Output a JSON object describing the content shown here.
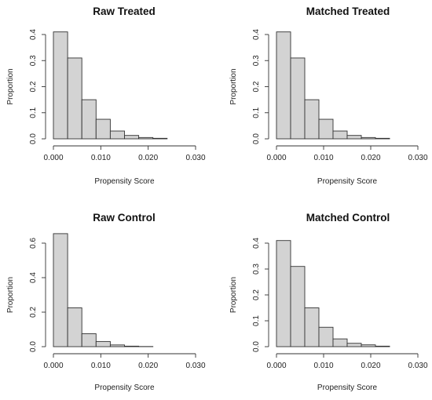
{
  "chart_data": [
    {
      "type": "bar",
      "title": "Raw Treated",
      "xlabel": "Propensity Score",
      "ylabel": "Proportion",
      "bin_edges": [
        0.0,
        0.003,
        0.006,
        0.009,
        0.012,
        0.015,
        0.018,
        0.021,
        0.024
      ],
      "values": [
        0.41,
        0.31,
        0.15,
        0.075,
        0.03,
        0.013,
        0.005,
        0.002
      ],
      "xlim": [
        0.0,
        0.03
      ],
      "ylim": [
        0,
        0.4
      ],
      "xticks": [
        "0.000",
        "0.010",
        "0.020",
        "0.030"
      ],
      "xtick_values": [
        0.0,
        0.01,
        0.02,
        0.03
      ],
      "yticks": [
        "0.0",
        "0.1",
        "0.2",
        "0.3",
        "0.4"
      ],
      "ytick_values": [
        0.0,
        0.1,
        0.2,
        0.3,
        0.4
      ]
    },
    {
      "type": "bar",
      "title": "Matched Treated",
      "xlabel": "Propensity Score",
      "ylabel": "Proportion",
      "bin_edges": [
        0.0,
        0.003,
        0.006,
        0.009,
        0.012,
        0.015,
        0.018,
        0.021,
        0.024
      ],
      "values": [
        0.41,
        0.31,
        0.15,
        0.075,
        0.03,
        0.013,
        0.005,
        0.002
      ],
      "xlim": [
        0.0,
        0.03
      ],
      "ylim": [
        0,
        0.4
      ],
      "xticks": [
        "0.000",
        "0.010",
        "0.020",
        "0.030"
      ],
      "xtick_values": [
        0.0,
        0.01,
        0.02,
        0.03
      ],
      "yticks": [
        "0.0",
        "0.1",
        "0.2",
        "0.3",
        "0.4"
      ],
      "ytick_values": [
        0.0,
        0.1,
        0.2,
        0.3,
        0.4
      ]
    },
    {
      "type": "bar",
      "title": "Raw Control",
      "xlabel": "Propensity Score",
      "ylabel": "Proportion",
      "bin_edges": [
        0.0,
        0.003,
        0.006,
        0.009,
        0.012,
        0.015,
        0.018,
        0.021
      ],
      "values": [
        0.655,
        0.225,
        0.075,
        0.03,
        0.01,
        0.003,
        0.001
      ],
      "xlim": [
        0.0,
        0.03
      ],
      "ylim": [
        0,
        0.6
      ],
      "xticks": [
        "0.000",
        "0.010",
        "0.020",
        "0.030"
      ],
      "xtick_values": [
        0.0,
        0.01,
        0.02,
        0.03
      ],
      "yticks": [
        "0.0",
        "0.2",
        "0.4",
        "0.6"
      ],
      "ytick_values": [
        0.0,
        0.2,
        0.4,
        0.6
      ]
    },
    {
      "type": "bar",
      "title": "Matched Control",
      "xlabel": "Propensity Score",
      "ylabel": "Proportion",
      "bin_edges": [
        0.0,
        0.003,
        0.006,
        0.009,
        0.012,
        0.015,
        0.018,
        0.021,
        0.024
      ],
      "values": [
        0.41,
        0.31,
        0.15,
        0.075,
        0.03,
        0.013,
        0.007,
        0.002
      ],
      "xlim": [
        0.0,
        0.03
      ],
      "ylim": [
        0,
        0.4
      ],
      "xticks": [
        "0.000",
        "0.010",
        "0.020",
        "0.030"
      ],
      "xtick_values": [
        0.0,
        0.01,
        0.02,
        0.03
      ],
      "yticks": [
        "0.0",
        "0.1",
        "0.2",
        "0.3",
        "0.4"
      ],
      "ytick_values": [
        0.0,
        0.1,
        0.2,
        0.3,
        0.4
      ]
    }
  ]
}
